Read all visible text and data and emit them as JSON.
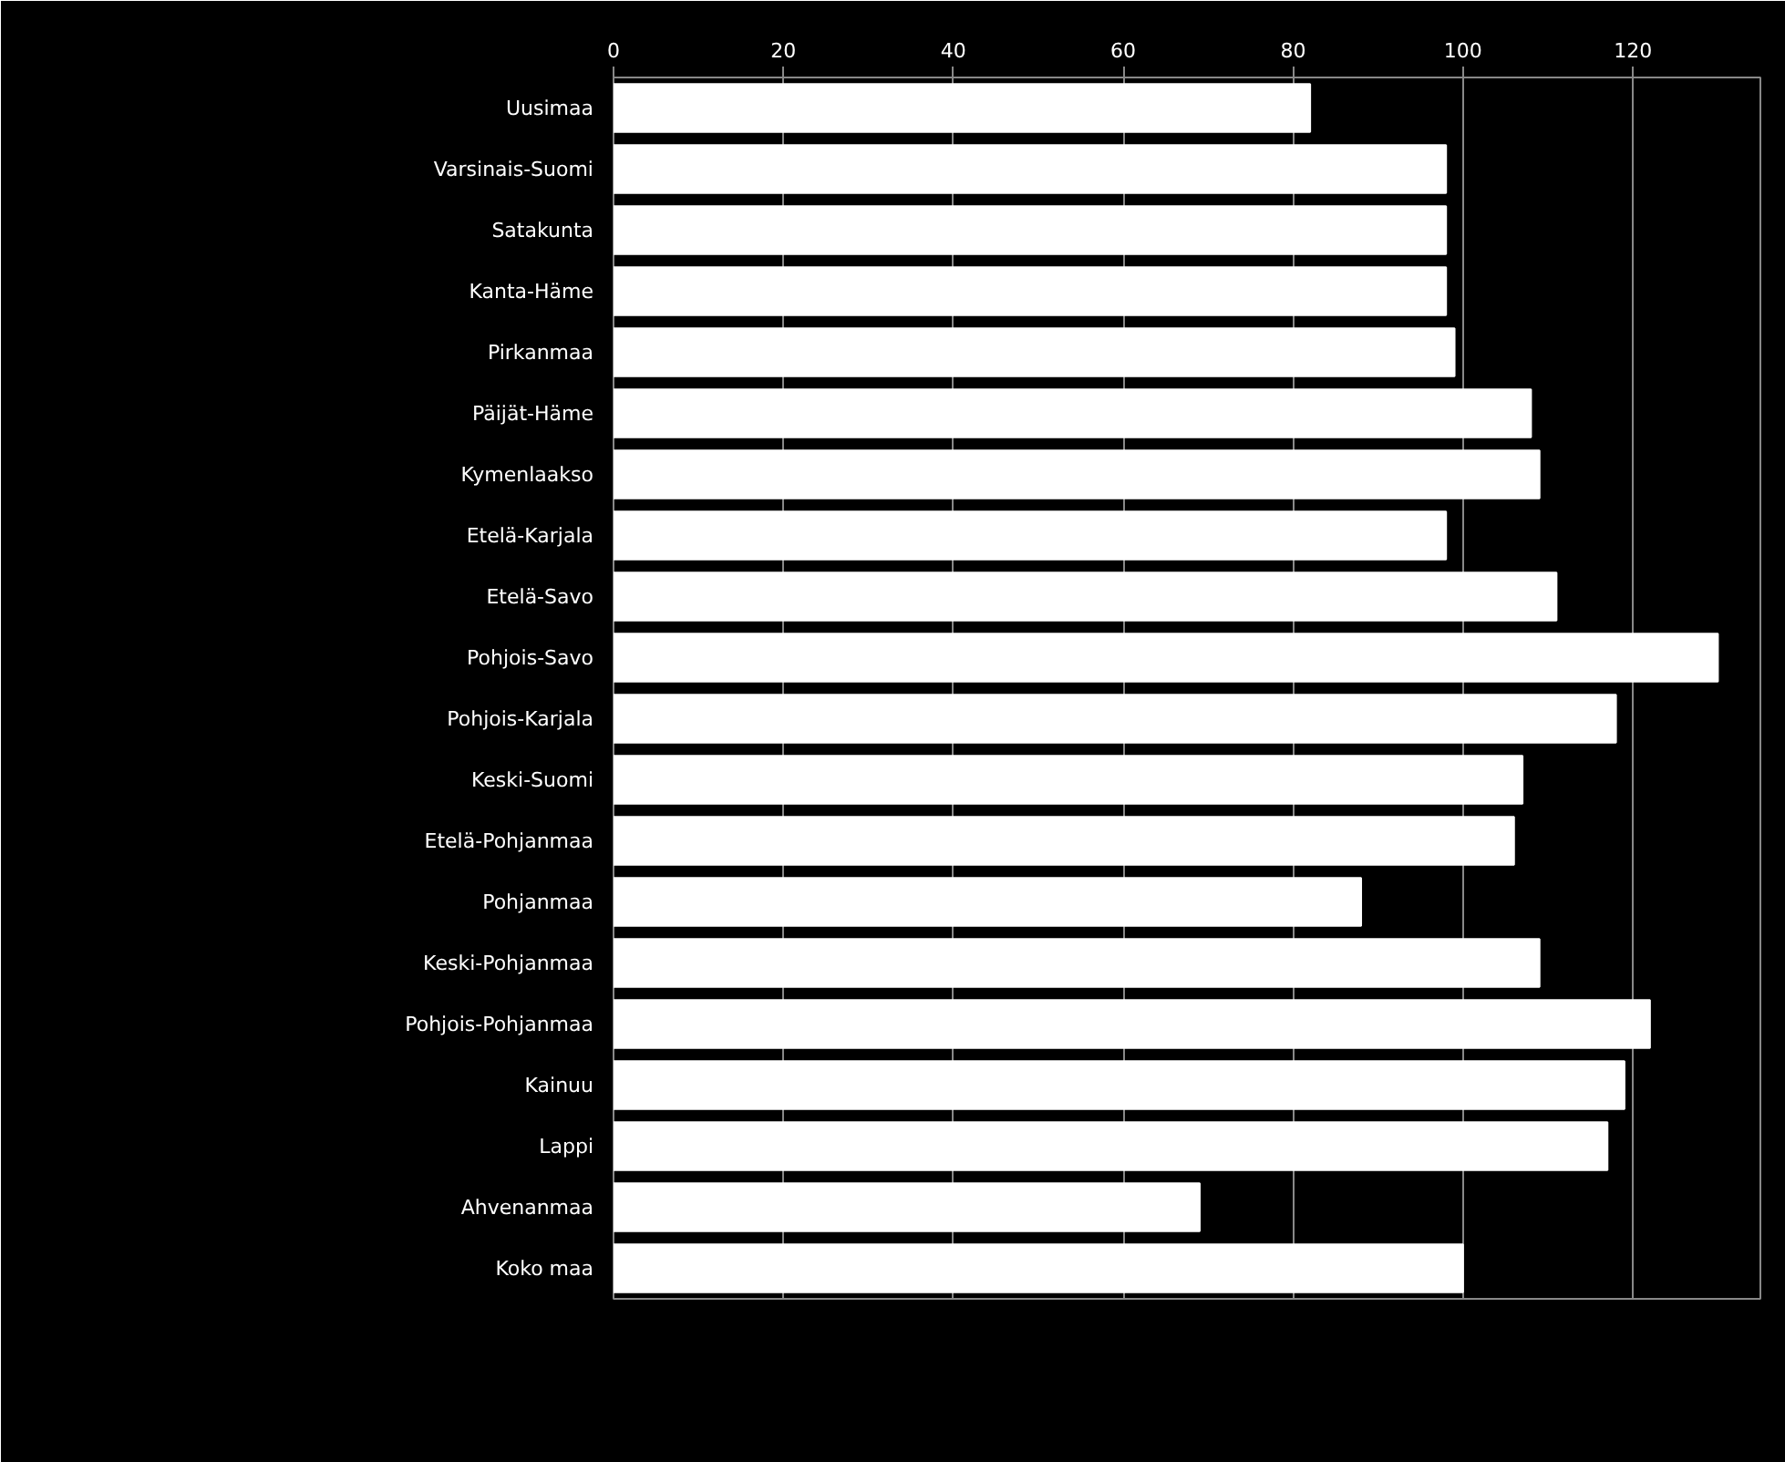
{
  "chart_data": {
    "type": "bar",
    "orientation": "horizontal",
    "categories": [
      "Uusimaa",
      "Varsinais-Suomi",
      "Satakunta",
      "Kanta-Häme",
      "Pirkanmaa",
      "Päijät-Häme",
      "Kymenlaakso",
      "Etelä-Karjala",
      "Etelä-Savo",
      "Pohjois-Savo",
      "Pohjois-Karjala",
      "Keski-Suomi",
      "Etelä-Pohjanmaa",
      "Pohjanmaa",
      "Keski-Pohjanmaa",
      "Pohjois-Pohjanmaa",
      "Kainuu",
      "Lappi",
      "Ahvenanmaa",
      "Koko maa"
    ],
    "values": [
      82,
      98,
      98,
      98,
      99,
      108,
      109,
      98,
      111,
      130,
      118,
      107,
      106,
      88,
      109,
      122,
      119,
      117,
      69,
      100
    ],
    "color": "#ffffff",
    "xlim": [
      0,
      135
    ],
    "xticks": [
      0,
      20,
      40,
      60,
      80,
      100,
      120
    ],
    "grid": "x"
  }
}
